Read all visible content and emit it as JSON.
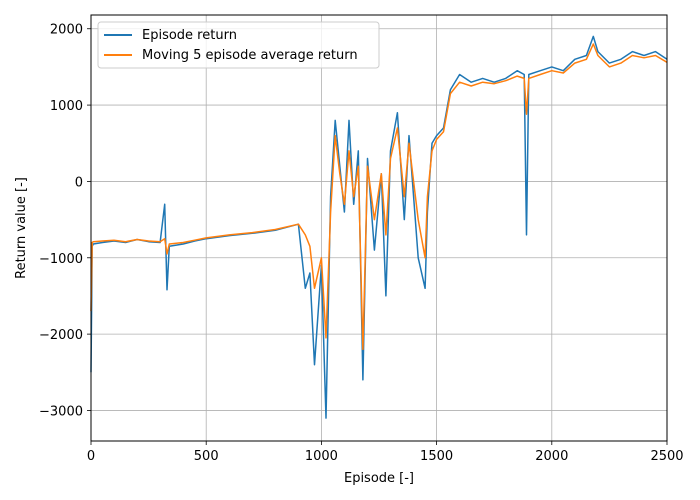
{
  "chart_data": {
    "type": "line",
    "xlabel": "Episode [-]",
    "ylabel": "Return value [-]",
    "xlim": [
      0,
      2500
    ],
    "ylim": [
      -3400,
      2180
    ],
    "xticks": [
      0,
      500,
      1000,
      1500,
      2000,
      2500
    ],
    "yticks": [
      -3000,
      -2000,
      -1000,
      0,
      1000,
      2000
    ],
    "grid": true,
    "legend_position": "top-left",
    "colors": {
      "series0": "#1f77b4",
      "series1": "#ff7f0e"
    },
    "series": [
      {
        "name": "Episode return",
        "x": [
          0,
          5,
          10,
          50,
          100,
          150,
          200,
          250,
          300,
          320,
          330,
          340,
          400,
          450,
          500,
          600,
          700,
          800,
          900,
          930,
          950,
          970,
          1000,
          1020,
          1040,
          1060,
          1080,
          1100,
          1120,
          1140,
          1160,
          1180,
          1200,
          1230,
          1260,
          1280,
          1300,
          1330,
          1360,
          1380,
          1420,
          1450,
          1460,
          1480,
          1500,
          1530,
          1560,
          1600,
          1650,
          1700,
          1750,
          1800,
          1850,
          1880,
          1890,
          1900,
          1950,
          2000,
          2050,
          2100,
          2150,
          2180,
          2200,
          2250,
          2300,
          2350,
          2400,
          2450,
          2500
        ],
        "y": [
          -2500,
          -850,
          -820,
          -800,
          -780,
          -800,
          -760,
          -790,
          -800,
          -300,
          -1420,
          -850,
          -820,
          -780,
          -750,
          -710,
          -680,
          -640,
          -560,
          -1400,
          -1200,
          -2400,
          -1100,
          -3100,
          -200,
          800,
          200,
          -400,
          800,
          -300,
          400,
          -2600,
          300,
          -900,
          100,
          -1500,
          400,
          900,
          -500,
          600,
          -1000,
          -1400,
          -400,
          500,
          600,
          700,
          1200,
          1400,
          1300,
          1350,
          1300,
          1350,
          1450,
          1400,
          -700,
          1400,
          1450,
          1500,
          1450,
          1600,
          1650,
          1900,
          1700,
          1550,
          1600,
          1700,
          1650,
          1700,
          1600
        ]
      },
      {
        "name": "Moving 5 episode average return",
        "x": [
          0,
          5,
          10,
          50,
          100,
          150,
          200,
          250,
          300,
          320,
          330,
          340,
          400,
          450,
          500,
          600,
          700,
          800,
          900,
          930,
          950,
          970,
          1000,
          1020,
          1040,
          1060,
          1080,
          1100,
          1120,
          1140,
          1160,
          1180,
          1200,
          1230,
          1260,
          1280,
          1300,
          1330,
          1360,
          1380,
          1420,
          1450,
          1460,
          1480,
          1500,
          1530,
          1560,
          1600,
          1650,
          1700,
          1750,
          1800,
          1850,
          1880,
          1890,
          1900,
          1950,
          2000,
          2050,
          2100,
          2150,
          2180,
          2200,
          2250,
          2300,
          2350,
          2400,
          2450,
          2500
        ],
        "y": [
          -1700,
          -800,
          -790,
          -780,
          -770,
          -790,
          -760,
          -780,
          -790,
          -750,
          -950,
          -820,
          -800,
          -770,
          -740,
          -700,
          -670,
          -630,
          -560,
          -700,
          -850,
          -1400,
          -1000,
          -2050,
          -400,
          600,
          100,
          -300,
          400,
          -200,
          200,
          -2200,
          200,
          -500,
          100,
          -700,
          300,
          700,
          -200,
          500,
          -500,
          -1000,
          -200,
          400,
          550,
          650,
          1150,
          1300,
          1250,
          1300,
          1280,
          1320,
          1380,
          1350,
          880,
          1350,
          1400,
          1450,
          1420,
          1550,
          1600,
          1800,
          1650,
          1500,
          1550,
          1650,
          1620,
          1650,
          1560
        ]
      }
    ]
  }
}
